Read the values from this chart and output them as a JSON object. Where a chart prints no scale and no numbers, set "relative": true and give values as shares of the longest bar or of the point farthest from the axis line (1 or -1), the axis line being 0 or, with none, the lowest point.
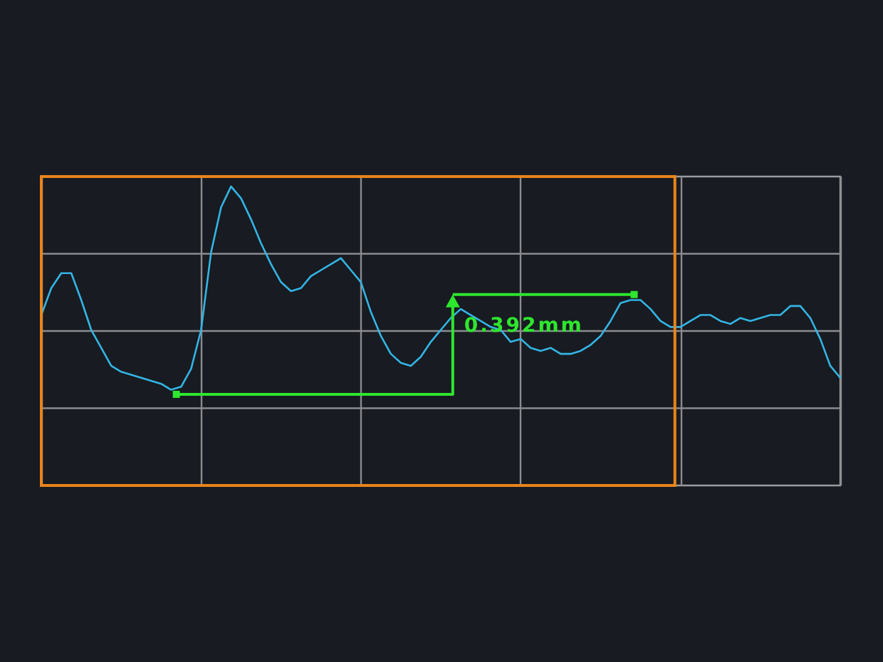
{
  "chart_data": {
    "type": "line",
    "relative": true,
    "color": "#33b5e5",
    "grid": true,
    "line_style": "solid",
    "categories": [
      null,
      null,
      null,
      null,
      null,
      null,
      null,
      null,
      null,
      null,
      null,
      null,
      null,
      null,
      null,
      null,
      null,
      null,
      null,
      null,
      null,
      null,
      null,
      null,
      null,
      null,
      null,
      null,
      null,
      null,
      null,
      null,
      null,
      null,
      null,
      null,
      null,
      null,
      null,
      null,
      null,
      null,
      null,
      null,
      null,
      null,
      null,
      null,
      null,
      null,
      null,
      null,
      null,
      null,
      null,
      null,
      null,
      null,
      null,
      null,
      null,
      null,
      null,
      null,
      null,
      null,
      null,
      null,
      null,
      null,
      null,
      null,
      null,
      null,
      null,
      null,
      null,
      null,
      null,
      null,
      null
    ],
    "values": [
      0.57,
      0.66,
      0.71,
      0.71,
      0.62,
      0.52,
      0.46,
      0.4,
      0.38,
      0.37,
      0.36,
      0.35,
      0.34,
      0.32,
      0.33,
      0.39,
      0.52,
      0.78,
      0.93,
      1,
      0.96,
      0.89,
      0.81,
      0.74,
      0.68,
      0.65,
      0.66,
      0.7,
      0.72,
      0.74,
      0.76,
      0.72,
      0.68,
      0.58,
      0.5,
      0.44,
      0.41,
      0.4,
      0.43,
      0.48,
      0.52,
      0.56,
      0.59,
      0.57,
      0.55,
      0.53,
      0.52,
      0.48,
      0.49,
      0.46,
      0.45,
      0.46,
      0.44,
      0.44,
      0.45,
      0.47,
      0.5,
      0.55,
      0.61,
      0.62,
      0.62,
      0.59,
      0.55,
      0.53,
      0.53,
      0.55,
      0.57,
      0.57,
      0.55,
      0.54,
      0.56,
      0.55,
      0.56,
      0.57,
      0.57,
      0.6,
      0.6,
      0.56,
      0.49,
      0.4,
      0.36
    ],
    "annotations": [
      "0.392mm"
    ]
  }
}
